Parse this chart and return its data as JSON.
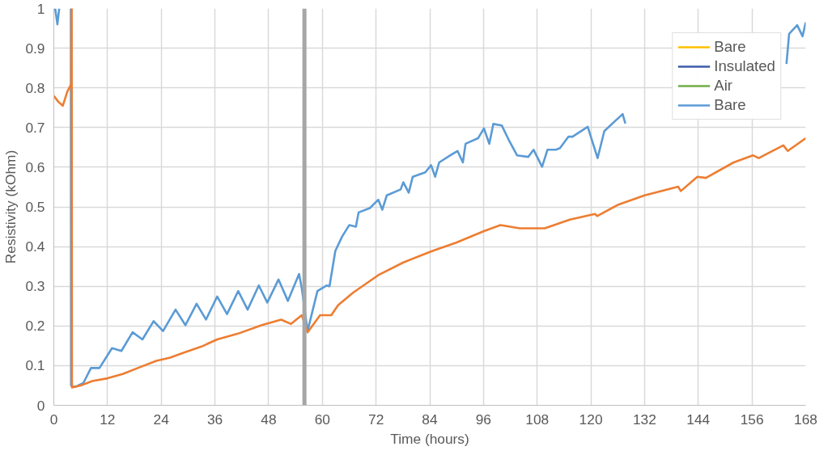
{
  "chart_data": {
    "type": "line",
    "xlabel": "Time (hours)",
    "ylabel": "Resistivity (kOhm)",
    "xlim": [
      0,
      168
    ],
    "ylim": [
      0,
      1
    ],
    "xticks": [
      0,
      12,
      24,
      36,
      48,
      60,
      72,
      84,
      96,
      108,
      120,
      132,
      144,
      156,
      168
    ],
    "yticks": [
      0,
      0.1,
      0.2,
      0.3,
      0.4,
      0.5,
      0.6,
      0.7,
      0.8,
      0.9,
      1
    ],
    "grid": true,
    "legend": "top right",
    "line_style": "solid",
    "ref_lines": [
      {
        "axis": "x",
        "value": 56,
        "color": "#a6a6a6"
      }
    ],
    "series": [
      {
        "name": "Bare",
        "color": "#ffc000"
      },
      {
        "name": "Insulated",
        "color": "#3b5ba9"
      },
      {
        "name": "Air",
        "color": "#70ad47"
      },
      {
        "name": "Bare",
        "color": "#5b9bd5",
        "x": [
          0.3,
          0.8,
          1.2,
          2.0,
          3.8,
          3.85,
          4.9,
          6.6,
          8.3,
          10.2,
          13,
          15.1,
          17.6,
          19.8,
          22.3,
          24.4,
          27.2,
          29.4,
          31.9,
          34,
          36.5,
          38.7,
          41.2,
          43.3,
          45.8,
          47.7,
          50.2,
          52.3,
          54.8,
          55.4,
          56.7,
          58.9,
          61,
          61.6,
          62.9,
          64.4,
          66,
          67.5,
          68.1,
          70.6,
          72.5,
          73.4,
          74.4,
          77.5,
          78.1,
          79.3,
          80.2,
          83,
          84.3,
          85.2,
          86.1,
          88.6,
          90.2,
          91.4,
          92,
          94.8,
          96.1,
          97.3,
          98.2,
          100.1,
          101.6,
          103.5,
          106,
          107.2,
          109.1,
          110.3,
          112.2,
          113.1,
          115,
          115.9,
          119.3,
          121.5,
          123,
          127.1,
          127.7,
          130,
          163.7,
          164.3,
          166.1,
          167.3,
          168
        ],
        "values": [
          1.0,
          0.96,
          1.0,
          null,
          1.0,
          0.05,
          0.047,
          0.056,
          0.094,
          0.094,
          0.144,
          0.137,
          0.184,
          0.166,
          0.212,
          0.187,
          0.241,
          0.202,
          0.256,
          0.216,
          0.274,
          0.23,
          0.288,
          0.241,
          0.302,
          0.259,
          0.317,
          0.263,
          0.331,
          0.295,
          0.187,
          0.288,
          0.302,
          0.3,
          0.389,
          0.425,
          0.454,
          0.45,
          0.486,
          0.497,
          0.518,
          0.493,
          0.529,
          0.544,
          0.562,
          0.536,
          0.576,
          0.587,
          0.605,
          0.576,
          0.612,
          0.63,
          0.641,
          0.612,
          0.659,
          0.673,
          0.698,
          0.659,
          0.709,
          0.705,
          0.67,
          0.63,
          0.626,
          0.644,
          0.601,
          0.644,
          0.644,
          0.648,
          0.677,
          0.677,
          0.702,
          0.623,
          0.691,
          0.734,
          0.71,
          null,
          0.86,
          0.936,
          0.958,
          0.93,
          0.965
        ]
      },
      {
        "color": "#ed7d31",
        "x": [
          0,
          1,
          2,
          3,
          3.9,
          4.0,
          4.05,
          6,
          8.6,
          12,
          15.4,
          19,
          22.9,
          26,
          29.1,
          33,
          36.5,
          41,
          46.5,
          50.8,
          53,
          55.4,
          56.7,
          59.5,
          62,
          63.5,
          66.9,
          72.5,
          78.1,
          84.6,
          89.9,
          96.1,
          99.8,
          104.1,
          109.7,
          115.3,
          120.9,
          121.4,
          126,
          132,
          139.5,
          140.1,
          143.8,
          145.7,
          151.9,
          156.2,
          157.5,
          163,
          164,
          168
        ],
        "values": [
          0.78,
          0.765,
          0.755,
          0.79,
          0.81,
          1.0,
          0.045,
          0.05,
          0.061,
          0.068,
          0.079,
          0.095,
          0.112,
          0.12,
          0.133,
          0.148,
          0.166,
          0.18,
          0.202,
          0.216,
          0.205,
          0.227,
          0.184,
          0.227,
          0.227,
          0.252,
          0.284,
          0.328,
          0.36,
          0.389,
          0.41,
          0.439,
          0.454,
          0.446,
          0.446,
          0.468,
          0.482,
          0.477,
          0.505,
          0.529,
          0.551,
          0.54,
          0.576,
          0.573,
          0.612,
          0.63,
          0.623,
          0.655,
          0.641,
          0.673
        ]
      }
    ]
  }
}
